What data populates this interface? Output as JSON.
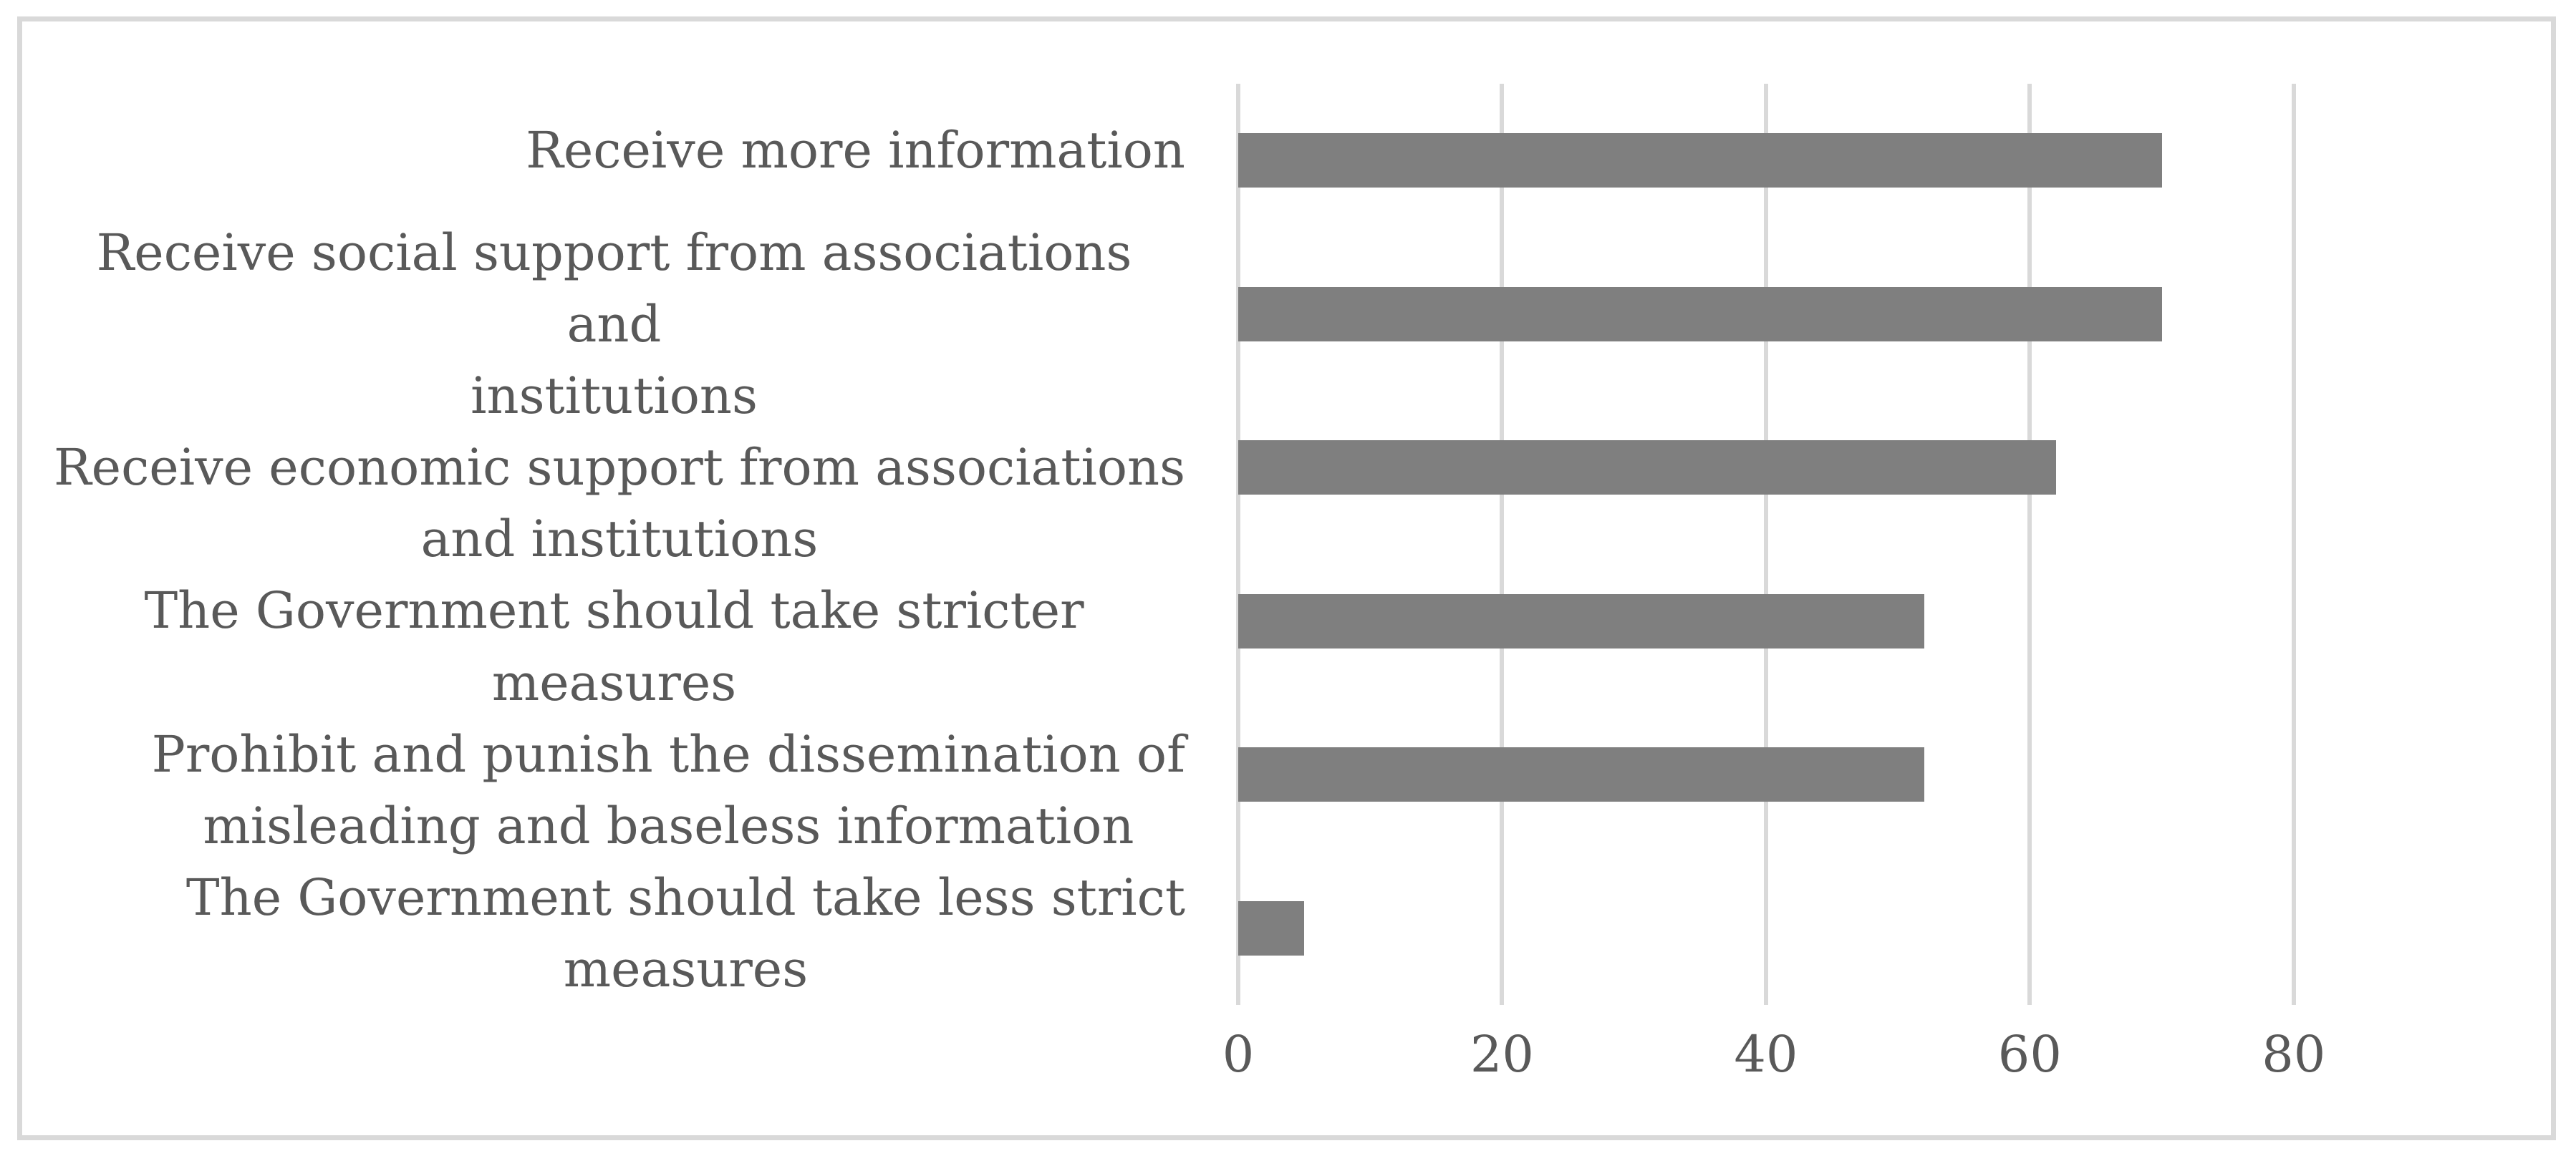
{
  "chart_data": {
    "type": "bar",
    "orientation": "horizontal",
    "title": "",
    "xlabel": "",
    "ylabel": "",
    "categories": [
      "Receive more information",
      "Receive social support from associations and\ninstitutions",
      "Receive economic support from associations\nand institutions",
      "The Government should take stricter measures",
      "Prohibit and punish the dissemination of\nmisleading and baseless information",
      "The Government should take less strict\nmeasures"
    ],
    "values": [
      70,
      70,
      62,
      52,
      52,
      5
    ],
    "xticks": [
      0,
      20,
      40,
      60,
      80
    ],
    "xlim": [
      0,
      90
    ],
    "grid": "vertical-major-only",
    "legend": "none",
    "bar_color": "#7f7f7f",
    "gridline_color": "#d9d9d9",
    "frame_color": "#d9d9d9",
    "text_color": "#595959"
  }
}
